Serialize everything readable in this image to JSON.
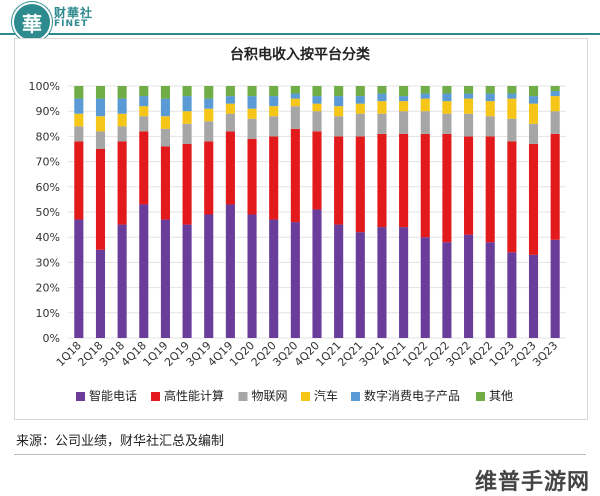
{
  "brand": {
    "logo_char": "華",
    "name_cn": "财華社",
    "name_en": "FINET"
  },
  "source": "来源：公司业绩，财华社汇总及编制",
  "watermark": "维普手游网",
  "colors": {
    "smartphone": "#6a3d9a",
    "hpc": "#e31a1c",
    "iot": "#a6a6a6",
    "auto": "#f5c518",
    "dce": "#5b9bd5",
    "other": "#70ad47",
    "header": "#2d8a8e"
  },
  "chart_data": {
    "type": "bar",
    "stacked": true,
    "title": "台积电收入按平台分类",
    "categories": [
      "1Q18",
      "2Q18",
      "3Q18",
      "4Q18",
      "1Q19",
      "2Q19",
      "3Q19",
      "4Q19",
      "1Q20",
      "2Q20",
      "3Q20",
      "4Q20",
      "1Q21",
      "2Q21",
      "3Q21",
      "4Q21",
      "1Q22",
      "2Q22",
      "3Q22",
      "4Q22",
      "1Q23",
      "2Q23",
      "3Q23"
    ],
    "y_ticks": [
      "0%",
      "10%",
      "20%",
      "30%",
      "40%",
      "50%",
      "60%",
      "70%",
      "80%",
      "90%",
      "100%"
    ],
    "ylim": [
      0,
      100
    ],
    "grid": true,
    "legend_position": "bottom",
    "series": [
      {
        "name": "智能电话",
        "color_key": "smartphone",
        "values": [
          47,
          35,
          45,
          53,
          47,
          45,
          49,
          53,
          49,
          47,
          46,
          51,
          45,
          42,
          44,
          44,
          40,
          38,
          41,
          38,
          34,
          33,
          39
        ]
      },
      {
        "name": "高性能计算",
        "color_key": "hpc",
        "values": [
          31,
          40,
          33,
          29,
          29,
          32,
          29,
          29,
          30,
          33,
          37,
          31,
          35,
          38,
          37,
          37,
          41,
          43,
          39,
          42,
          44,
          44,
          42
        ]
      },
      {
        "name": "物联网",
        "color_key": "iot",
        "values": [
          6,
          7,
          6,
          6,
          7,
          8,
          8,
          7,
          8,
          8,
          9,
          8,
          8,
          9,
          8,
          9,
          9,
          8,
          9,
          8,
          9,
          8,
          9
        ]
      },
      {
        "name": "汽车",
        "color_key": "auto",
        "values": [
          5,
          6,
          5,
          4,
          5,
          5,
          5,
          4,
          4,
          4,
          3,
          3,
          4,
          4,
          5,
          4,
          5,
          5,
          6,
          6,
          8,
          8,
          6
        ]
      },
      {
        "name": "数字消费电子产品",
        "color_key": "dce",
        "values": [
          6,
          7,
          6,
          4,
          7,
          6,
          4,
          3,
          5,
          4,
          2,
          3,
          4,
          3,
          3,
          2,
          2,
          3,
          2,
          3,
          2,
          3,
          2
        ]
      },
      {
        "name": "其他",
        "color_key": "other",
        "values": [
          5,
          5,
          5,
          4,
          5,
          4,
          5,
          4,
          4,
          4,
          3,
          4,
          4,
          4,
          3,
          4,
          3,
          3,
          3,
          3,
          3,
          4,
          2
        ]
      }
    ]
  }
}
